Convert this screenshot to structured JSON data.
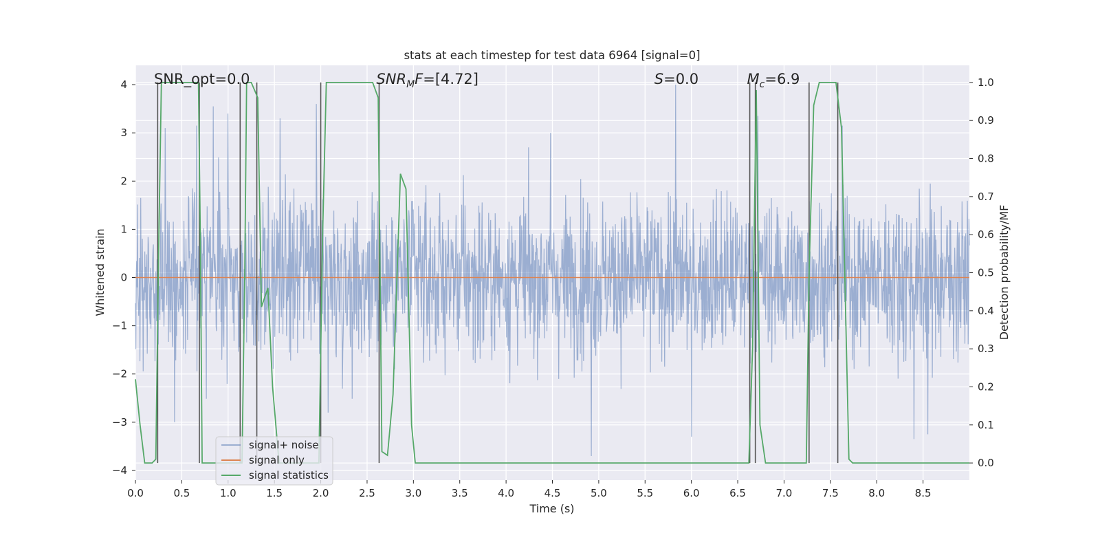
{
  "chart_data": {
    "type": "line",
    "title": "stats at each timestep for test data 6964 [signal=0]",
    "xlabel": "Time (s)",
    "ylabel": "Whitened strain",
    "y2label": "Detection probability/MF",
    "xlim": [
      0.0,
      9.0
    ],
    "ylim": [
      -4.2,
      4.4
    ],
    "y2lim": [
      -0.045,
      1.045
    ],
    "grid": true,
    "background": "#eaeaf2",
    "x_ticks": [
      0.0,
      0.5,
      1.0,
      1.5,
      2.0,
      2.5,
      3.0,
      3.5,
      4.0,
      4.5,
      5.0,
      5.5,
      6.0,
      6.5,
      7.0,
      7.5,
      8.0,
      8.5
    ],
    "x_tick_labels": [
      "0.0",
      "0.5",
      "1.0",
      "1.5",
      "2.0",
      "2.5",
      "3.0",
      "3.5",
      "4.0",
      "4.5",
      "5.0",
      "5.5",
      "6.0",
      "6.5",
      "7.0",
      "7.5",
      "8.0",
      "8.5"
    ],
    "y_ticks": [
      -4,
      -3,
      -2,
      -1,
      0,
      1,
      2,
      3,
      4
    ],
    "y_tick_labels": [
      "−4",
      "−3",
      "−2",
      "−1",
      "0",
      "1",
      "2",
      "3",
      "4"
    ],
    "y2_ticks": [
      0.0,
      0.1,
      0.2,
      0.3,
      0.4,
      0.5,
      0.6,
      0.7,
      0.8,
      0.9,
      1.0
    ],
    "y2_tick_labels": [
      "0.0",
      "0.1",
      "0.2",
      "0.3",
      "0.4",
      "0.5",
      "0.6",
      "0.7",
      "0.8",
      "0.9",
      "1.0"
    ],
    "noise_series": {
      "name": "signal+ noise",
      "color": "#4c72b0",
      "opacity": 0.5,
      "x_start": 0.0,
      "x_end": 9.0,
      "samples": 2048,
      "spikes": [
        {
          "x": 0.32,
          "y": 3.1
        },
        {
          "x": 0.66,
          "y": 3.15
        },
        {
          "x": 0.84,
          "y": 3.55
        },
        {
          "x": 1.0,
          "y": 3.4
        },
        {
          "x": 1.56,
          "y": 3.3
        },
        {
          "x": 1.95,
          "y": 3.6
        },
        {
          "x": 4.48,
          "y": 3.0
        },
        {
          "x": 4.92,
          "y": 3.3
        },
        {
          "x": 5.83,
          "y": 4.0
        },
        {
          "x": 6.72,
          "y": 3.35
        },
        {
          "x": 7.63,
          "y": 3.15
        },
        {
          "x": 4.92,
          "y": -3.7
        },
        {
          "x": 6.0,
          "y": -3.3
        },
        {
          "x": 8.4,
          "y": -3.35
        },
        {
          "x": 8.55,
          "y": -3.25
        },
        {
          "x": 0.42,
          "y": -3.0
        },
        {
          "x": 2.08,
          "y": -2.8
        }
      ]
    },
    "signal_only": {
      "name": "signal only",
      "color": "#dd8452",
      "x": [
        0.0,
        9.0
      ],
      "y": [
        0.0,
        0.0
      ]
    },
    "signal_statistics": {
      "name": "signal statistics",
      "color": "#55a868",
      "axis": "right",
      "x": [
        0.0,
        0.05,
        0.1,
        0.18,
        0.22,
        0.25,
        0.28,
        0.3,
        0.35,
        0.5,
        0.68,
        0.7,
        0.72,
        0.75,
        0.8,
        0.9,
        1.0,
        1.12,
        1.15,
        1.18,
        1.2,
        1.25,
        1.32,
        1.36,
        1.43,
        1.48,
        1.55,
        1.6,
        1.7,
        1.8,
        1.9,
        1.98,
        2.02,
        2.06,
        2.1,
        2.2,
        2.4,
        2.56,
        2.62,
        2.66,
        2.72,
        2.78,
        2.86,
        2.92,
        2.98,
        3.02,
        3.08,
        3.5,
        4.0,
        4.5,
        5.0,
        5.5,
        6.0,
        6.4,
        6.5,
        6.62,
        6.66,
        6.7,
        6.74,
        6.8,
        6.9,
        7.0,
        7.1,
        7.24,
        7.27,
        7.32,
        7.38,
        7.5,
        7.56,
        7.62,
        7.7,
        7.74,
        7.8,
        8.0,
        8.5,
        9.0
      ],
      "y": [
        0.22,
        0.1,
        0.0,
        0.0,
        0.01,
        0.55,
        1.0,
        1.0,
        1.0,
        1.0,
        1.0,
        0.6,
        0.0,
        0.0,
        0.0,
        0.0,
        0.0,
        0.0,
        0.0,
        0.5,
        1.0,
        1.0,
        0.96,
        0.41,
        0.46,
        0.2,
        0.0,
        0.0,
        0.0,
        0.0,
        0.0,
        0.0,
        0.6,
        1.0,
        1.0,
        1.0,
        1.0,
        1.0,
        0.96,
        0.03,
        0.02,
        0.18,
        0.76,
        0.72,
        0.1,
        0.0,
        0.0,
        0.0,
        0.0,
        0.0,
        0.0,
        0.0,
        0.0,
        0.0,
        0.0,
        0.0,
        0.3,
        0.98,
        0.1,
        0.0,
        0.0,
        0.0,
        0.0,
        0.0,
        0.5,
        0.94,
        1.0,
        1.0,
        1.0,
        0.88,
        0.01,
        0.0,
        0.0,
        0.0,
        0.0,
        0.0
      ]
    },
    "vertical_lines": {
      "color": "#555555",
      "x": [
        0.24,
        0.69,
        1.13,
        1.31,
        2.0,
        2.63,
        6.63,
        6.69,
        7.27,
        7.58
      ]
    },
    "annotations": [
      {
        "text": "SNR_opt=0.0",
        "x": 0.2,
        "y": 4.0
      },
      {
        "text": "SNR_MF=[4.72]",
        "x": 2.6,
        "y": 4.0
      },
      {
        "text": "S=0.0",
        "x": 5.6,
        "y": 4.0
      },
      {
        "text": "M_c=6.9",
        "x": 6.6,
        "y": 4.0
      }
    ],
    "legend": {
      "placement": "lower-left",
      "entries": [
        {
          "label": "signal+ noise",
          "color": "#4c72b0",
          "opacity": 0.5
        },
        {
          "label": "signal only",
          "color": "#dd8452",
          "opacity": 1.0
        },
        {
          "label": "signal statistics",
          "color": "#55a868",
          "opacity": 1.0
        }
      ]
    }
  }
}
